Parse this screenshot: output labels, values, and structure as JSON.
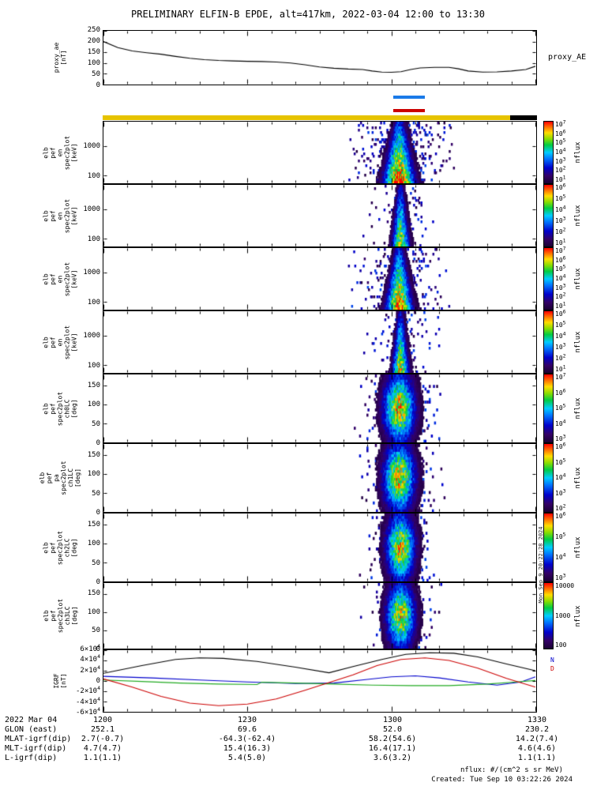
{
  "title": "PRELIMINARY ELFIN-B EPDE, alt=417km, 2022-03-04 12:00 to 13:30",
  "footer": {
    "units": "nflux: #/(cm^2 s sr MeV)",
    "created": "Created: Tue Sep 10 03:22:26 2024"
  },
  "side_text": "Mon Sep 9 20:22:28 2024",
  "colors": {
    "background": "#ffffff",
    "axis": "#000000",
    "marker_blue": "#1a7ae8",
    "marker_red": "#cc0000",
    "bar_yellow": "#e6c300",
    "bar_black": "#000000",
    "colormap": [
      {
        "p": 0.0,
        "c": "#1a0033"
      },
      {
        "p": 0.12,
        "c": "#330066"
      },
      {
        "p": 0.25,
        "c": "#0000cc"
      },
      {
        "p": 0.4,
        "c": "#0077ff"
      },
      {
        "p": 0.5,
        "c": "#00ccff"
      },
      {
        "p": 0.62,
        "c": "#00cc44"
      },
      {
        "p": 0.72,
        "c": "#88dd00"
      },
      {
        "p": 0.82,
        "c": "#ffdd00"
      },
      {
        "p": 0.92,
        "c": "#ff6600"
      },
      {
        "p": 1.0,
        "c": "#ff0000"
      }
    ]
  },
  "x_axis": {
    "total_minutes": 90,
    "start": "12:00",
    "end": "13:30",
    "ticks": [
      {
        "min": 0,
        "label": "1200"
      },
      {
        "min": 30,
        "label": "1230"
      },
      {
        "min": 60,
        "label": "1300"
      },
      {
        "min": 90,
        "label": "1330"
      }
    ]
  },
  "markers": {
    "blue": {
      "start_min": 60.2,
      "end_min": 66.8
    },
    "red": {
      "start_min": 60.2,
      "end_min": 66.8
    },
    "yellow": {
      "start_min": 0,
      "end_min": 84.5
    },
    "black": {
      "start_min": 84.5,
      "end_min": 90
    }
  },
  "igrf_legend": [
    {
      "label": "N",
      "color": "#0000cc"
    },
    {
      "label": "D",
      "color": "#cc0000"
    }
  ],
  "chart_data": [
    {
      "id": "proxy_ae",
      "type": "line",
      "ylabel_lines": [
        "proxy_ae",
        "[nT]"
      ],
      "right_label": "proxy_AE",
      "ylim": [
        0,
        250
      ],
      "yticks": [
        {
          "v": 250,
          "label": "250"
        },
        {
          "v": 200,
          "label": "200"
        },
        {
          "v": 150,
          "label": "150"
        },
        {
          "v": 100,
          "label": "100"
        },
        {
          "v": 50,
          "label": "50"
        },
        {
          "v": 0,
          "label": "0"
        }
      ],
      "series": [
        {
          "name": "black",
          "color": "#000000",
          "points": [
            [
              0,
              200
            ],
            [
              3,
              172
            ],
            [
              6,
              156
            ],
            [
              9,
              148
            ],
            [
              12,
              141
            ],
            [
              15,
              131
            ],
            [
              18,
              122
            ],
            [
              21,
              116
            ],
            [
              24,
              112
            ],
            [
              27,
              110
            ],
            [
              30,
              108
            ],
            [
              33,
              107
            ],
            [
              36,
              105
            ],
            [
              39,
              100
            ],
            [
              42,
              92
            ],
            [
              45,
              82
            ],
            [
              48,
              76
            ],
            [
              51,
              72
            ],
            [
              54,
              70
            ],
            [
              56,
              63
            ],
            [
              58,
              58
            ],
            [
              60,
              57
            ],
            [
              62,
              60
            ],
            [
              64,
              70
            ],
            [
              66,
              77
            ],
            [
              69,
              80
            ],
            [
              72,
              80
            ],
            [
              74,
              73
            ],
            [
              76,
              63
            ],
            [
              79,
              58
            ],
            [
              82,
              59
            ],
            [
              85,
              63
            ],
            [
              88,
              70
            ],
            [
              90,
              85
            ]
          ]
        }
      ]
    },
    {
      "id": "en_spec_1",
      "type": "spectrogram",
      "profile": "energy",
      "ylabel_lines": [
        "elb",
        "pef",
        "en",
        "spec2plot",
        "[keV]"
      ],
      "yscale": "log",
      "ylim": [
        55,
        7000
      ],
      "yticks": [
        {
          "v": 1000,
          "label": "1000"
        },
        {
          "v": 100,
          "label": "100"
        }
      ],
      "burst": {
        "center": 61.5,
        "width": 2.0,
        "amp": 1.0,
        "speckle": 0.2,
        "spread": 9
      },
      "colorbar": {
        "ticks": [
          "10^7",
          "10^6",
          "10^5",
          "10^4",
          "10^3",
          "10^2",
          "10^1"
        ],
        "label": "nflux"
      }
    },
    {
      "id": "en_spec_2",
      "type": "spectrogram",
      "profile": "energy",
      "ylabel_lines": [
        "elb",
        "pef",
        "en",
        "spec2plot",
        "[keV]"
      ],
      "yscale": "log",
      "ylim": [
        55,
        7000
      ],
      "yticks": [
        {
          "v": 1000,
          "label": "1000"
        },
        {
          "v": 100,
          "label": "100"
        }
      ],
      "burst": {
        "center": 61.8,
        "width": 1.15,
        "amp": 0.75,
        "speckle": 0.08,
        "spread": 5.5
      },
      "colorbar": {
        "ticks": [
          "10^6",
          "10^5",
          "10^4",
          "10^3",
          "10^2",
          "10^1"
        ],
        "label": "nflux"
      }
    },
    {
      "id": "en_spec_3",
      "type": "spectrogram",
      "profile": "energy",
      "ylabel_lines": [
        "elb",
        "pef",
        "en",
        "spec2plot",
        "[keV]"
      ],
      "yscale": "log",
      "ylim": [
        55,
        7000
      ],
      "yticks": [
        {
          "v": 1000,
          "label": "1000"
        },
        {
          "v": 100,
          "label": "100"
        }
      ],
      "burst": {
        "center": 61.5,
        "width": 1.7,
        "amp": 0.95,
        "speckle": 0.15,
        "spread": 8
      },
      "colorbar": {
        "ticks": [
          "10^7",
          "10^6",
          "10^5",
          "10^4",
          "10^3",
          "10^2",
          "10^1"
        ],
        "label": "nflux"
      }
    },
    {
      "id": "en_spec_4",
      "type": "spectrogram",
      "profile": "energy",
      "ylabel_lines": [
        "elb",
        "pef",
        "en",
        "spec2plot",
        "[keV]"
      ],
      "yscale": "log",
      "ylim": [
        55,
        7000
      ],
      "yticks": [
        {
          "v": 1000,
          "label": "1000"
        },
        {
          "v": 100,
          "label": "100"
        }
      ],
      "burst": {
        "center": 61.8,
        "width": 1.1,
        "amp": 0.8,
        "speckle": 0.1,
        "spread": 6
      },
      "colorbar": {
        "ticks": [
          "10^6",
          "10^5",
          "10^4",
          "10^3",
          "10^2",
          "10^1"
        ],
        "label": "nflux"
      }
    },
    {
      "id": "pa_spec_ch0LC",
      "type": "spectrogram",
      "profile": "pitch",
      "ylabel_lines": [
        "elb",
        "pef",
        "spec2plot",
        "ch0LC",
        "[deg]"
      ],
      "yscale": "linear",
      "ylim": [
        0,
        180
      ],
      "yticks": [
        {
          "v": 150,
          "label": "150"
        },
        {
          "v": 100,
          "label": "100"
        },
        {
          "v": 50,
          "label": "50"
        },
        {
          "v": 0,
          "label": "0"
        }
      ],
      "burst": {
        "center": 61.5,
        "width": 2.1,
        "amp": 0.82,
        "speckle": 0.14,
        "spread": 7
      },
      "colorbar": {
        "ticks": [
          "10^7",
          "10^6",
          "10^5",
          "10^4",
          "10^3"
        ],
        "label": "nflux"
      }
    },
    {
      "id": "pa_spec_ch1LC",
      "type": "spectrogram",
      "profile": "pitch",
      "ylabel_lines": [
        "elb",
        "pef",
        "pa",
        "spec2plot",
        "ch1LC",
        "[deg]"
      ],
      "yscale": "linear",
      "ylim": [
        0,
        180
      ],
      "yticks": [
        {
          "v": 150,
          "label": "150"
        },
        {
          "v": 100,
          "label": "100"
        },
        {
          "v": 50,
          "label": "50"
        },
        {
          "v": 0,
          "label": "0"
        }
      ],
      "burst": {
        "center": 61.5,
        "width": 2.1,
        "amp": 0.82,
        "speckle": 0.14,
        "spread": 7
      },
      "colorbar": {
        "ticks": [
          "10^6",
          "10^5",
          "10^4",
          "10^3",
          "10^2"
        ],
        "label": "nflux"
      }
    },
    {
      "id": "pa_spec_ch2LC",
      "type": "spectrogram",
      "profile": "pitch",
      "ylabel_lines": [
        "elb",
        "pef",
        "spec2plot",
        "ch2LC",
        "[deg]"
      ],
      "yscale": "linear",
      "ylim": [
        0,
        180
      ],
      "yticks": [
        {
          "v": 150,
          "label": "150"
        },
        {
          "v": 100,
          "label": "100"
        },
        {
          "v": 50,
          "label": "50"
        },
        {
          "v": 0,
          "label": "0"
        }
      ],
      "burst": {
        "center": 61.8,
        "width": 1.9,
        "amp": 0.8,
        "speckle": 0.12,
        "spread": 6
      },
      "colorbar": {
        "ticks": [
          "10^6",
          "10^5",
          "10^4",
          "10^3"
        ],
        "label": "nflux"
      }
    },
    {
      "id": "pa_spec_ch3LC",
      "type": "spectrogram",
      "profile": "pitch",
      "ylabel_lines": [
        "elb",
        "pef",
        "spec2plot",
        "ch3LC",
        "[deg]"
      ],
      "yscale": "linear",
      "ylim": [
        0,
        180
      ],
      "yticks": [
        {
          "v": 150,
          "label": "150"
        },
        {
          "v": 100,
          "label": "100"
        },
        {
          "v": 50,
          "label": "50"
        },
        {
          "v": 0,
          "label": "0"
        }
      ],
      "burst": {
        "center": 61.8,
        "width": 1.9,
        "amp": 0.78,
        "speckle": 0.12,
        "spread": 6
      },
      "colorbar": {
        "ticks": [
          "10000",
          "1000",
          "100"
        ],
        "label": "nflux"
      }
    },
    {
      "id": "igrf",
      "type": "line",
      "ylabel_lines": [
        "IGRF",
        "[nT]"
      ],
      "ylim": [
        -60000,
        60000
      ],
      "yticks": [
        {
          "v": 60000,
          "label": "6×10^4"
        },
        {
          "v": 40000,
          "label": "4×10^4"
        },
        {
          "v": 20000,
          "label": "2×10^4"
        },
        {
          "v": 0,
          "label": "0"
        },
        {
          "v": -20000,
          "label": "-2×10^4"
        },
        {
          "v": -40000,
          "label": "-4×10^4"
        },
        {
          "v": -60000,
          "label": "-6×10^4"
        }
      ],
      "series": [
        {
          "name": "black",
          "color": "#000000",
          "points": [
            [
              0,
              15000
            ],
            [
              8,
              30000
            ],
            [
              15,
              42000
            ],
            [
              20,
              45000
            ],
            [
              25,
              44000
            ],
            [
              32,
              38000
            ],
            [
              40,
              27000
            ],
            [
              47,
              16000
            ],
            [
              52,
              28000
            ],
            [
              58,
              42000
            ],
            [
              63,
              52000
            ],
            [
              68,
              55000
            ],
            [
              73,
              54000
            ],
            [
              78,
              47000
            ],
            [
              84,
              33000
            ],
            [
              90,
              20000
            ]
          ]
        },
        {
          "name": "blue",
          "color": "#0000cc",
          "points": [
            [
              0,
              9000
            ],
            [
              10,
              6000
            ],
            [
              20,
              2000
            ],
            [
              30,
              -2000
            ],
            [
              40,
              -5000
            ],
            [
              48,
              -4000
            ],
            [
              55,
              3000
            ],
            [
              60,
              8000
            ],
            [
              65,
              10000
            ],
            [
              70,
              6000
            ],
            [
              76,
              -2000
            ],
            [
              82,
              -8000
            ],
            [
              87,
              -2000
            ],
            [
              90,
              8000
            ]
          ]
        },
        {
          "name": "green",
          "color": "#22aa22",
          "points": [
            [
              0,
              2000
            ],
            [
              8,
              -1000
            ],
            [
              16,
              -4000
            ],
            [
              24,
              -6000
            ],
            [
              32,
              -7000
            ],
            [
              33,
              -2500
            ],
            [
              40,
              -4000
            ],
            [
              48,
              -6000
            ],
            [
              56,
              -8000
            ],
            [
              64,
              -9000
            ],
            [
              72,
              -9000
            ],
            [
              80,
              -6000
            ],
            [
              86,
              -2000
            ],
            [
              90,
              1000
            ]
          ]
        },
        {
          "name": "red",
          "color": "#cc0000",
          "points": [
            [
              0,
              4000
            ],
            [
              6,
              -12000
            ],
            [
              12,
              -30000
            ],
            [
              18,
              -43000
            ],
            [
              24,
              -48000
            ],
            [
              30,
              -45000
            ],
            [
              36,
              -35000
            ],
            [
              42,
              -18000
            ],
            [
              47,
              -3000
            ],
            [
              52,
              12000
            ],
            [
              57,
              30000
            ],
            [
              62,
              42000
            ],
            [
              67,
              45000
            ],
            [
              72,
              40000
            ],
            [
              78,
              25000
            ],
            [
              84,
              5000
            ],
            [
              90,
              -12000
            ]
          ]
        }
      ]
    }
  ],
  "bottom_table": {
    "rows": [
      {
        "label": "2022 Mar 04",
        "values": [
          "1200",
          "1230",
          "1300",
          "1330"
        ]
      },
      {
        "label": "GLON (east)",
        "values": [
          "252.1",
          "69.6",
          "52.0",
          "230.2"
        ]
      },
      {
        "label": "MLAT-igrf(dip)",
        "values": [
          "2.7(-0.7)",
          "-64.3(-62.4)",
          "58.2(54.6)",
          "14.2(7.4)"
        ]
      },
      {
        "label": "MLT-igrf(dip)",
        "values": [
          "4.7(4.7)",
          "15.4(16.3)",
          "16.4(17.1)",
          "4.6(4.6)"
        ]
      },
      {
        "label": "L-igrf(dip)",
        "values": [
          "1.1(1.1)",
          "5.4(5.0)",
          "3.6(3.2)",
          "1.1(1.1)"
        ]
      }
    ]
  }
}
